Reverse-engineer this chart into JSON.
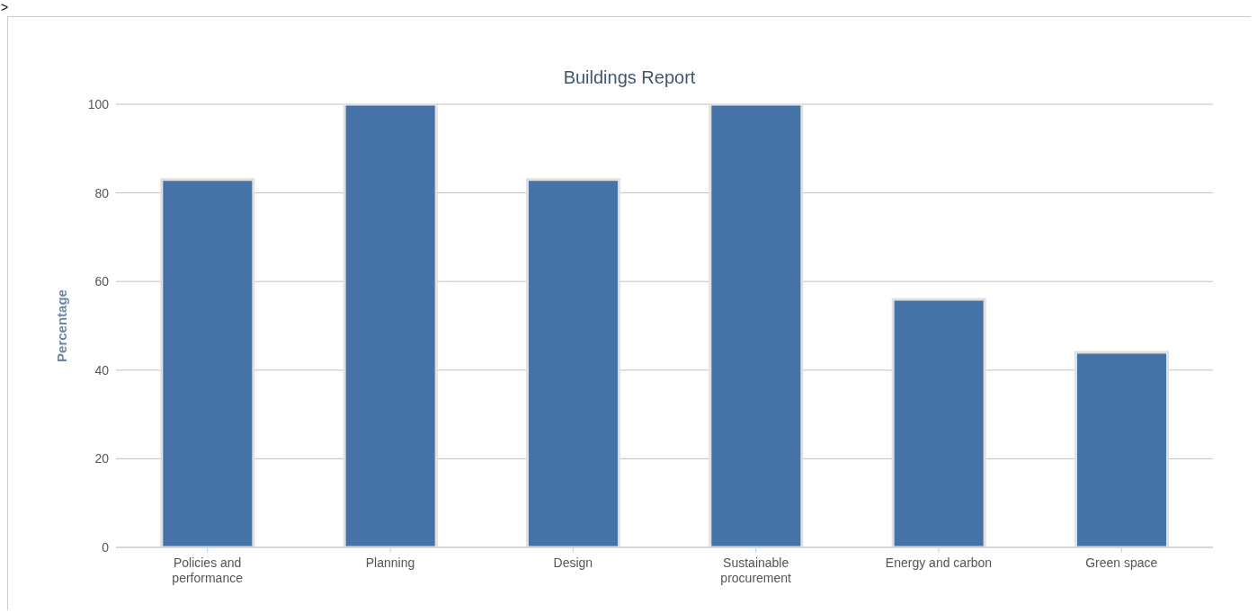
{
  "chart_data": {
    "type": "bar",
    "title": "Buildings Report",
    "ylabel": "Percentage",
    "categories": [
      "Policies and performance",
      "Planning",
      "Design",
      "Sustainable procurement",
      "Energy and carbon",
      "Green space"
    ],
    "values": [
      83,
      100,
      83,
      100,
      56,
      44
    ],
    "color": "#4573a7",
    "ylim": [
      0,
      100
    ],
    "yticks": [
      0,
      20,
      40,
      60,
      80,
      100
    ],
    "grid": "y",
    "annotations": [
      ">"
    ]
  }
}
